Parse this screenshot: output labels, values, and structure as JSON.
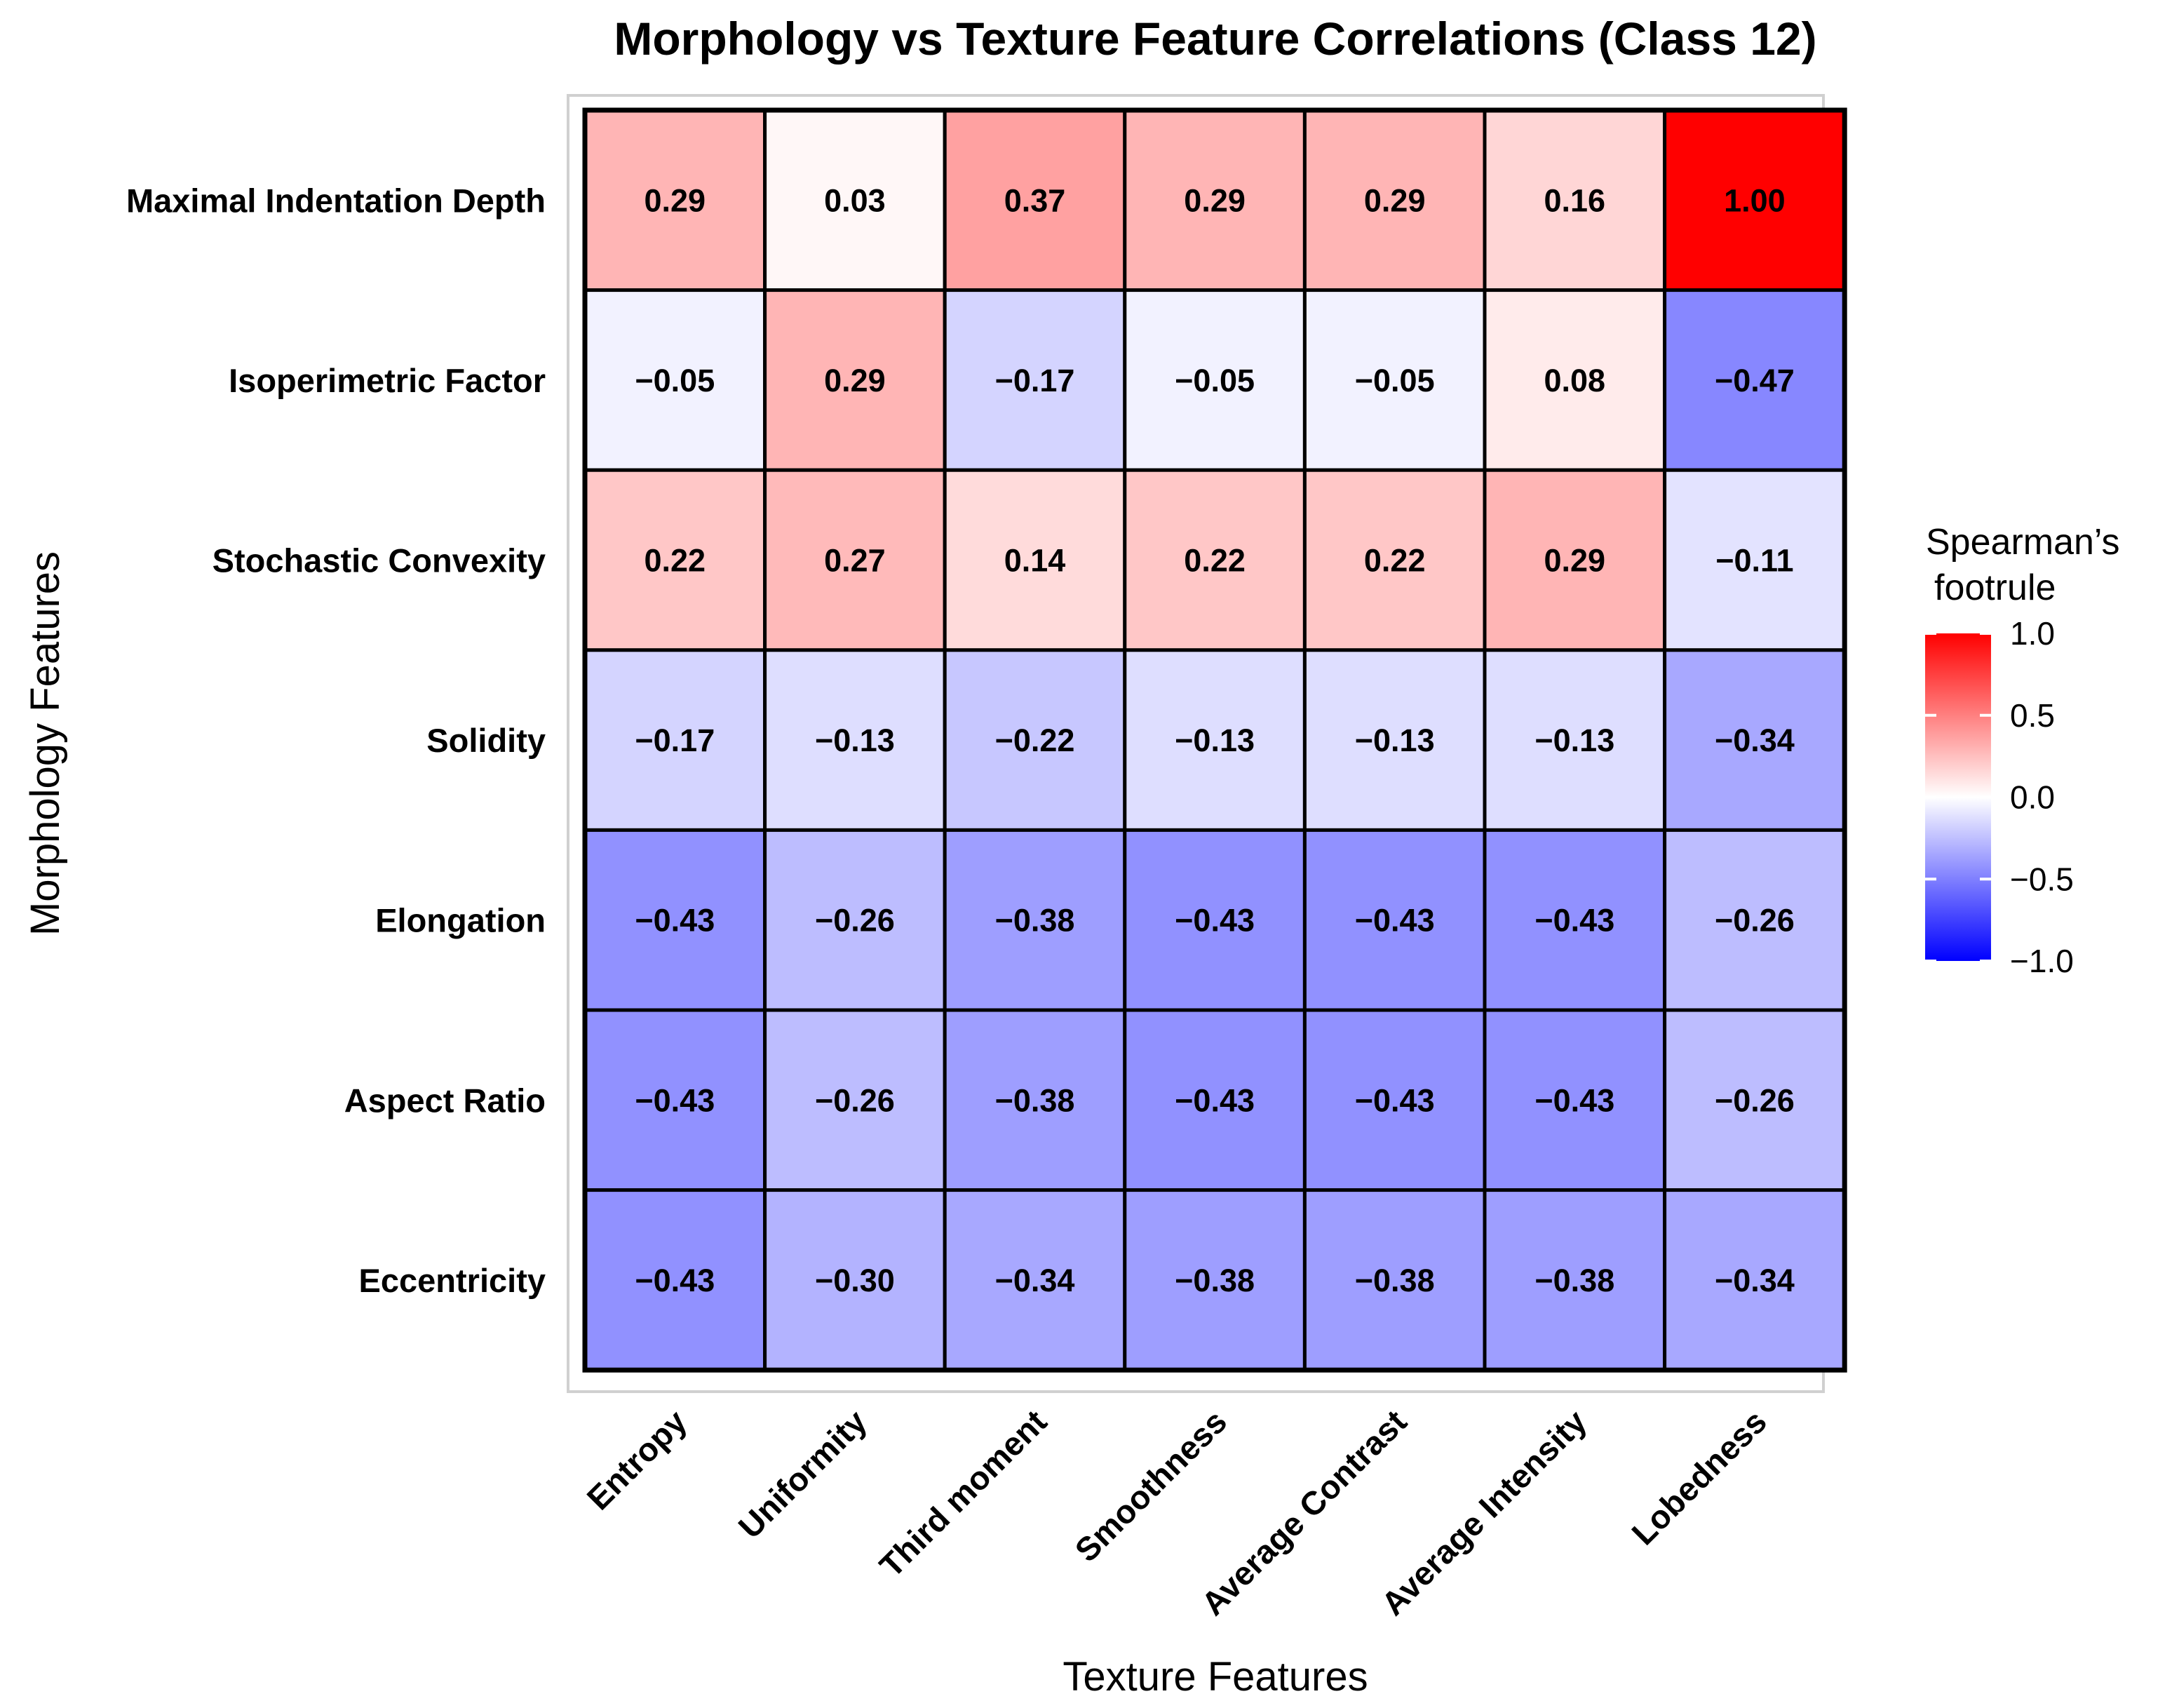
{
  "chart_data": {
    "type": "heatmap",
    "title": "Morphology vs Texture Feature Correlations (Class 12)",
    "xlabel": "Texture Features",
    "ylabel": "Morphology Features",
    "columns": [
      "Entropy",
      "Uniformity",
      "Third moment",
      "Smoothness",
      "Average Contrast",
      "Average Intensity",
      "Lobedness"
    ],
    "rows": [
      "Maximal Indentation Depth",
      "Isoperimetric Factor",
      "Stochastic Convexity",
      "Solidity",
      "Elongation",
      "Aspect Ratio",
      "Eccentricity"
    ],
    "values": [
      [
        0.29,
        0.03,
        0.37,
        0.29,
        0.29,
        0.16,
        1.0
      ],
      [
        -0.05,
        0.29,
        -0.17,
        -0.05,
        -0.05,
        0.08,
        -0.47
      ],
      [
        0.22,
        0.27,
        0.14,
        0.22,
        0.22,
        0.29,
        -0.11
      ],
      [
        -0.17,
        -0.13,
        -0.22,
        -0.13,
        -0.13,
        -0.13,
        -0.34
      ],
      [
        -0.43,
        -0.26,
        -0.38,
        -0.43,
        -0.43,
        -0.43,
        -0.26
      ],
      [
        -0.43,
        -0.26,
        -0.38,
        -0.43,
        -0.43,
        -0.43,
        -0.26
      ],
      [
        -0.43,
        -0.3,
        -0.34,
        -0.38,
        -0.38,
        -0.38,
        -0.34
      ]
    ],
    "labels": [
      [
        "0.29",
        "0.03",
        "0.37",
        "0.29",
        "0.29",
        "0.16",
        "1.00"
      ],
      [
        "−0.05",
        "0.29",
        "−0.17",
        "−0.05",
        "−0.05",
        "0.08",
        "−0.47"
      ],
      [
        "0.22",
        "0.27",
        "0.14",
        "0.22",
        "0.22",
        "0.29",
        "−0.11"
      ],
      [
        "−0.17",
        "−0.13",
        "−0.22",
        "−0.13",
        "−0.13",
        "−0.13",
        "−0.34"
      ],
      [
        "−0.43",
        "−0.26",
        "−0.38",
        "−0.43",
        "−0.43",
        "−0.43",
        "−0.26"
      ],
      [
        "−0.43",
        "−0.26",
        "−0.38",
        "−0.43",
        "−0.43",
        "−0.43",
        "−0.26"
      ],
      [
        "−0.43",
        "−0.30",
        "−0.34",
        "−0.38",
        "−0.38",
        "−0.38",
        "−0.34"
      ]
    ],
    "legend": {
      "title_lines": [
        "Spearman’s",
        "footrule"
      ],
      "ticks": [
        1.0,
        0.5,
        0.0,
        -0.5,
        -1.0
      ],
      "tick_labels": [
        "1.0",
        "0.5",
        "0.0",
        "−0.5",
        "−1.0"
      ],
      "range": [
        -1,
        1
      ],
      "placement": "right"
    },
    "colors": {
      "low": "#0000ff",
      "mid": "#ffffff",
      "high": "#ff0000"
    }
  }
}
